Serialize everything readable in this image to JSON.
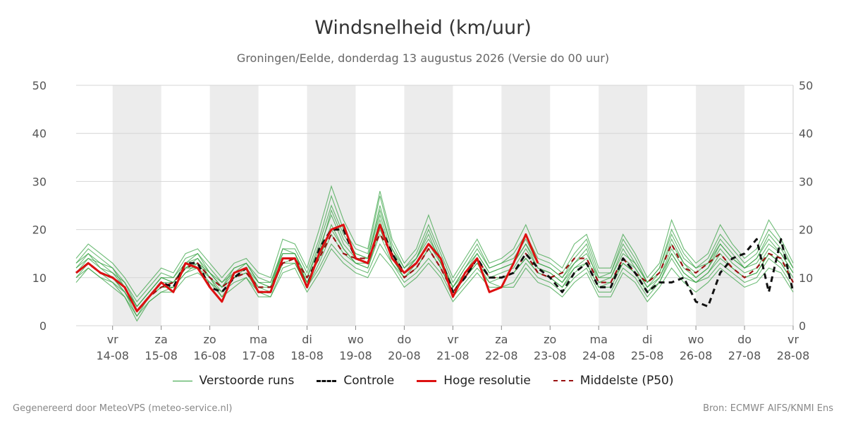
{
  "chart_data": {
    "type": "line",
    "title": "Windsnelheid (km/uur)",
    "subtitle": "Groningen/Eelde, donderdag 13 augustus 2026 (Versie do 00 uur)",
    "ylim": [
      0,
      50
    ],
    "yticks": [
      0,
      10,
      20,
      30,
      40,
      50
    ],
    "grid": true,
    "legend_position": "bottom",
    "x_range_days": [
      -0.75,
      14
    ],
    "x_ticks": [
      {
        "day": 0,
        "weekday": "vr",
        "date": "14-08"
      },
      {
        "day": 1,
        "weekday": "za",
        "date": "15-08"
      },
      {
        "day": 2,
        "weekday": "zo",
        "date": "16-08"
      },
      {
        "day": 3,
        "weekday": "ma",
        "date": "17-08"
      },
      {
        "day": 4,
        "weekday": "di",
        "date": "18-08"
      },
      {
        "day": 5,
        "weekday": "wo",
        "date": "19-08"
      },
      {
        "day": 6,
        "weekday": "do",
        "date": "20-08"
      },
      {
        "day": 7,
        "weekday": "vr",
        "date": "21-08"
      },
      {
        "day": 8,
        "weekday": "za",
        "date": "22-08"
      },
      {
        "day": 9,
        "weekday": "zo",
        "date": "23-08"
      },
      {
        "day": 10,
        "weekday": "ma",
        "date": "24-08"
      },
      {
        "day": 11,
        "weekday": "di",
        "date": "25-08"
      },
      {
        "day": 12,
        "weekday": "wo",
        "date": "26-08"
      },
      {
        "day": 13,
        "weekday": "do",
        "date": "27-08"
      },
      {
        "day": 14,
        "weekday": "vr",
        "date": "28-08"
      }
    ],
    "night_bands_days": [
      [
        0,
        1
      ],
      [
        2,
        3
      ],
      [
        4,
        5
      ],
      [
        6,
        7
      ],
      [
        8,
        9
      ],
      [
        10,
        11
      ],
      [
        12,
        13
      ]
    ],
    "x_step_days": 0.25,
    "series": [
      {
        "name": "Controle",
        "color": "#111111",
        "dash": "8,6",
        "values": [
          11,
          13,
          11,
          10,
          8,
          3,
          6,
          9,
          8,
          13,
          13,
          8,
          7,
          10,
          12,
          7,
          7,
          14,
          14,
          8,
          16,
          20,
          20,
          14,
          13,
          21,
          15,
          11,
          13,
          17,
          14,
          7,
          10,
          14,
          10,
          10,
          11,
          15,
          12,
          10,
          7,
          11,
          13,
          8,
          8,
          14,
          11,
          7,
          9,
          9,
          10,
          5,
          4,
          11,
          14,
          15,
          18,
          7,
          18,
          7
        ]
      },
      {
        "name": "Hoge resolutie",
        "color": "#dd1111",
        "dash": "",
        "values": [
          11,
          13,
          11,
          10,
          8,
          3,
          6,
          9,
          7,
          13,
          12,
          8,
          5,
          11,
          12,
          7,
          7,
          14,
          14,
          8,
          15,
          20,
          21,
          14,
          13,
          21,
          14,
          11,
          13,
          17,
          14,
          6,
          11,
          14,
          7,
          8,
          13,
          19,
          13
        ]
      },
      {
        "name": "Middelste (P50)",
        "color": "#991111",
        "dash": "7,6",
        "values": [
          11,
          13,
          11,
          10,
          8,
          3,
          6,
          8,
          9,
          12,
          13,
          10,
          8,
          10,
          11,
          8,
          8,
          13,
          14,
          10,
          14,
          19,
          15,
          14,
          14,
          19,
          15,
          10,
          12,
          16,
          12,
          7,
          10,
          14,
          10,
          10,
          11,
          15,
          11,
          10,
          11,
          14,
          14,
          9,
          9,
          14,
          11,
          9,
          11,
          17,
          12,
          11,
          13,
          15,
          12,
          10,
          12,
          15,
          14,
          9
        ]
      },
      {
        "name": "Verstoorde runs",
        "color": "#2e9e3a",
        "dash": "",
        "ensemble": [
          [
            12,
            15,
            12,
            11,
            9,
            4,
            7,
            10,
            9,
            12,
            14,
            10,
            8,
            11,
            13,
            9,
            8,
            15,
            15,
            9,
            15,
            24,
            18,
            15,
            14,
            24,
            16,
            11,
            14,
            19,
            13,
            8,
            11,
            15,
            11,
            12,
            13,
            17,
            12,
            11,
            9,
            13,
            16,
            9,
            10,
            16,
            12,
            8,
            11,
            18,
            13,
            10,
            12,
            17,
            14,
            12,
            14,
            18,
            15,
            11
          ],
          [
            10,
            12,
            10,
            9,
            6,
            2,
            5,
            7,
            8,
            11,
            12,
            9,
            7,
            9,
            10,
            7,
            6,
            12,
            13,
            8,
            12,
            17,
            14,
            12,
            11,
            17,
            13,
            9,
            11,
            14,
            11,
            6,
            9,
            12,
            9,
            8,
            9,
            13,
            10,
            9,
            7,
            10,
            12,
            7,
            7,
            12,
            10,
            6,
            9,
            14,
            10,
            9,
            10,
            13,
            11,
            9,
            10,
            14,
            12,
            8
          ],
          [
            13,
            16,
            14,
            12,
            9,
            5,
            8,
            11,
            10,
            14,
            15,
            12,
            9,
            12,
            13,
            10,
            9,
            16,
            16,
            11,
            18,
            27,
            20,
            16,
            15,
            27,
            17,
            12,
            15,
            21,
            15,
            9,
            13,
            17,
            12,
            13,
            15,
            19,
            14,
            13,
            11,
            15,
            18,
            11,
            11,
            18,
            14,
            9,
            12,
            20,
            15,
            12,
            14,
            19,
            16,
            13,
            15,
            20,
            17,
            12
          ],
          [
            11,
            14,
            12,
            10,
            7,
            3,
            6,
            9,
            9,
            12,
            13,
            11,
            8,
            10,
            12,
            8,
            8,
            14,
            14,
            9,
            14,
            21,
            16,
            13,
            13,
            22,
            14,
            10,
            13,
            17,
            13,
            7,
            11,
            14,
            10,
            11,
            12,
            16,
            12,
            11,
            9,
            12,
            14,
            9,
            9,
            14,
            12,
            8,
            10,
            16,
            12,
            10,
            12,
            16,
            13,
            11,
            12,
            16,
            14,
            10
          ],
          [
            10,
            13,
            11,
            10,
            7,
            2,
            6,
            8,
            8,
            11,
            13,
            10,
            6,
            10,
            11,
            8,
            7,
            13,
            13,
            8,
            13,
            19,
            15,
            13,
            12,
            20,
            14,
            10,
            12,
            16,
            12,
            7,
            10,
            13,
            9,
            10,
            11,
            14,
            11,
            10,
            8,
            12,
            13,
            8,
            8,
            13,
            11,
            7,
            10,
            15,
            11,
            9,
            11,
            15,
            12,
            10,
            11,
            15,
            13,
            9
          ],
          [
            14,
            17,
            15,
            13,
            10,
            6,
            9,
            12,
            11,
            15,
            16,
            13,
            10,
            13,
            14,
            11,
            10,
            18,
            17,
            12,
            20,
            29,
            22,
            17,
            16,
            28,
            18,
            13,
            16,
            23,
            16,
            10,
            14,
            18,
            13,
            14,
            16,
            21,
            15,
            14,
            12,
            17,
            19,
            12,
            12,
            19,
            15,
            10,
            13,
            22,
            16,
            13,
            15,
            21,
            17,
            14,
            16,
            22,
            18,
            13
          ],
          [
            9,
            12,
            10,
            8,
            6,
            1,
            5,
            7,
            7,
            10,
            11,
            9,
            6,
            8,
            10,
            6,
            6,
            11,
            12,
            7,
            11,
            16,
            13,
            11,
            10,
            15,
            12,
            8,
            10,
            13,
            10,
            5,
            8,
            11,
            8,
            8,
            8,
            12,
            9,
            8,
            6,
            9,
            11,
            6,
            6,
            11,
            9,
            5,
            8,
            12,
            9,
            7,
            9,
            12,
            10,
            8,
            9,
            12,
            11,
            7
          ],
          [
            12,
            14,
            13,
            11,
            8,
            4,
            7,
            10,
            9,
            13,
            14,
            11,
            9,
            11,
            12,
            9,
            9,
            15,
            15,
            10,
            16,
            23,
            17,
            14,
            14,
            23,
            15,
            11,
            14,
            18,
            14,
            8,
            12,
            15,
            11,
            12,
            13,
            17,
            13,
            12,
            10,
            13,
            15,
            10,
            10,
            15,
            13,
            9,
            11,
            17,
            13,
            11,
            13,
            17,
            14,
            12,
            13,
            17,
            15,
            11
          ],
          [
            11,
            13,
            11,
            9,
            7,
            3,
            6,
            8,
            8,
            12,
            12,
            10,
            7,
            10,
            11,
            7,
            7,
            13,
            14,
            9,
            14,
            20,
            16,
            13,
            12,
            19,
            13,
            10,
            12,
            16,
            12,
            7,
            10,
            13,
            10,
            10,
            11,
            14,
            11,
            10,
            8,
            11,
            13,
            8,
            9,
            13,
            11,
            7,
            9,
            15,
            11,
            9,
            11,
            14,
            12,
            10,
            11,
            15,
            13,
            9
          ],
          [
            13,
            15,
            13,
            12,
            8,
            4,
            7,
            10,
            10,
            13,
            15,
            11,
            8,
            12,
            13,
            9,
            8,
            16,
            15,
            10,
            17,
            25,
            19,
            15,
            14,
            25,
            16,
            12,
            14,
            20,
            14,
            8,
            12,
            16,
            12,
            13,
            14,
            18,
            13,
            12,
            10,
            14,
            17,
            10,
            11,
            17,
            13,
            9,
            12,
            19,
            14,
            12,
            13,
            18,
            15,
            12,
            14,
            19,
            16,
            12
          ]
        ]
      }
    ],
    "legend": [
      {
        "label": "Verstoorde runs",
        "color": "#2e9e3a",
        "style": "thin"
      },
      {
        "label": "Controle",
        "color": "#111111",
        "style": "dashed"
      },
      {
        "label": "Hoge resolutie",
        "color": "#dd1111",
        "style": "solid"
      },
      {
        "label": "Middelste (P50)",
        "color": "#991111",
        "style": "dashed"
      }
    ]
  },
  "footer": {
    "left": "Gegenereerd door MeteoVPS (meteo-service.nl)",
    "right": "Bron: ECMWF AIFS/KNMI Ens"
  }
}
